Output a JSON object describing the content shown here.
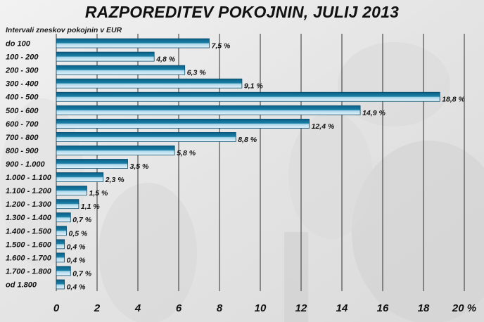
{
  "chart_data": {
    "type": "bar",
    "orientation": "horizontal",
    "title": "RAZPOREDITEV POKOJNIN, JULIJ 2013",
    "ylabel": "Intervali zneskov pokojnin v EUR",
    "categories": [
      "do 100",
      "100 - 200",
      "200 - 300",
      "300 - 400",
      "400 - 500",
      "500 - 600",
      "600 - 700",
      "700 - 800",
      "800 - 900",
      "900 - 1.000",
      "1.000 - 1.100",
      "1.100 - 1.200",
      "1.200 - 1.300",
      "1.300 - 1.400",
      "1.400 - 1.500",
      "1.500 - 1.600",
      "1.600 - 1.700",
      "1.700 - 1.800",
      "od 1.800"
    ],
    "values": [
      7.5,
      4.8,
      6.3,
      9.1,
      18.8,
      14.9,
      12.4,
      8.8,
      5.8,
      3.5,
      2.3,
      1.5,
      1.1,
      0.7,
      0.5,
      0.4,
      0.4,
      0.7,
      0.4
    ],
    "value_labels": [
      "7,5 %",
      "4,8 %",
      "6,3 %",
      "9,1 %",
      "18,8 %",
      "14,9 %",
      "12,4 %",
      "8,8 %",
      "5,8 %",
      "3,5 %",
      "2,3 %",
      "1,5 %",
      "1,1 %",
      "0,7 %",
      "0,5 %",
      "0,4 %",
      "0,4 %",
      "0,7 %",
      "0,4 %"
    ],
    "xticks": [
      "0",
      "2",
      "4",
      "6",
      "8",
      "10",
      "12",
      "14",
      "16",
      "18",
      "20 %"
    ],
    "xlim": [
      0,
      20
    ],
    "grid": "vertical",
    "bar_color": "#1a7fa6"
  }
}
